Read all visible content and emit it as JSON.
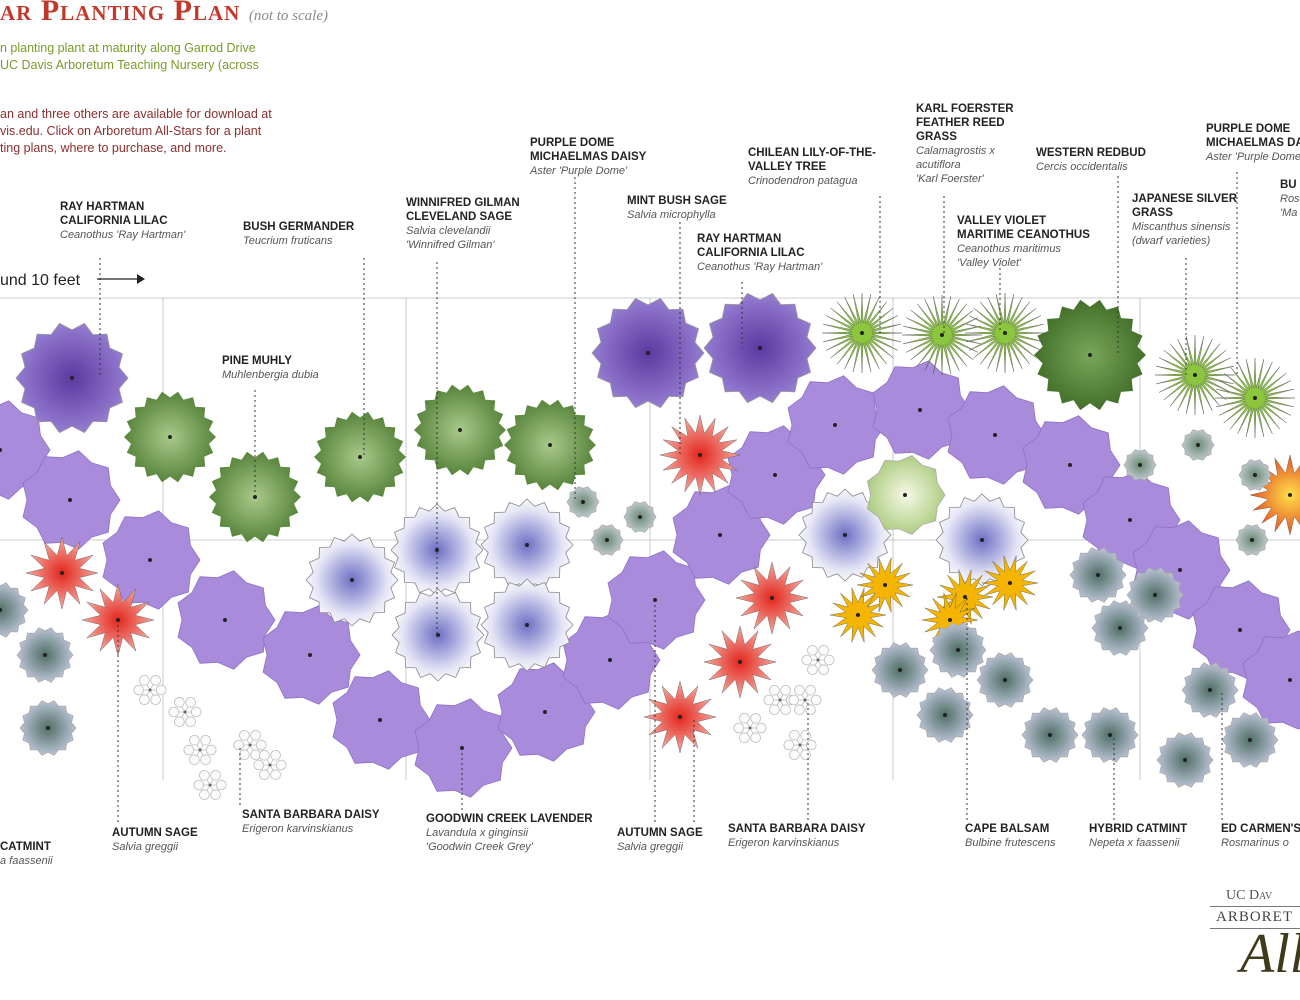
{
  "header": {
    "title": "ar Planting Plan",
    "note": "(not to scale)",
    "intro_1": "n planting plant at maturity along Garrod Drive\nUC Davis Arboretum Teaching Nursery (across",
    "intro_2": "an and three others are available for download at\nvis.edu. Click on Arboretum All-Stars for a plant\nting plans, where to purchase, and more."
  },
  "scale_label": "und 10 feet",
  "labels": [
    {
      "common": "RAY HARTMAN\nCALIFORNIA LILAC",
      "botanical": "Ceanothus 'Ray Hartman'"
    },
    {
      "common": "BUSH GERMANDER",
      "botanical": "Teucrium fruticans"
    },
    {
      "common": "WINNIFRED GILMAN\nCLEVELAND SAGE",
      "botanical": "Salvia clevelandii\n'Winnifred Gilman'"
    },
    {
      "common": "PURPLE DOME\nMICHAELMAS DAISY",
      "botanical": "Aster 'Purple Dome'"
    },
    {
      "common": "MINT BUSH SAGE",
      "botanical": "Salvia microphylla"
    },
    {
      "common": "RAY HARTMAN\nCALIFORNIA LILAC",
      "botanical": "Ceanothus 'Ray Hartman'"
    },
    {
      "common": "CHILEAN LILY-OF-THE-\nVALLEY TREE",
      "botanical": "Crinodendron patagua"
    },
    {
      "common": "KARL FOERSTER\nFEATHER REED\nGRASS",
      "botanical": "Calamagrostis x\nacutiflora\n'Karl Foerster'"
    },
    {
      "common": "WESTERN REDBUD",
      "botanical": "Cercis occidentalis"
    },
    {
      "common": "VALLEY VIOLET\nMARITIME CEANOTHUS",
      "botanical": "Ceanothus maritimus\n'Valley Violet'"
    },
    {
      "common": "PURPLE DOME\nMICHAELMAS DAISY",
      "botanical": "Aster 'Purple Dome'"
    },
    {
      "common": "JAPANESE SILVER\nGRASS",
      "botanical": "Miscanthus sinensis\n(dwarf varieties)"
    },
    {
      "common": "BU",
      "botanical": "Ros\n'Ma"
    },
    {
      "common": "PINE MUHLY",
      "botanical": "Muhlenbergia dubia"
    },
    {
      "common": "CATMINT",
      "botanical": "a faassenii"
    },
    {
      "common": "AUTUMN SAGE",
      "botanical": "Salvia greggii"
    },
    {
      "common": "SANTA BARBARA DAISY",
      "botanical": "Erigeron karvinskianus"
    },
    {
      "common": "GOODWIN CREEK LAVENDER",
      "botanical": "Lavandula x ginginsii\n'Goodwin Creek Grey'"
    },
    {
      "common": "AUTUMN SAGE",
      "botanical": "Salvia greggii"
    },
    {
      "common": "SANTA BARBARA DAISY",
      "botanical": "Erigeron karvinskianus"
    },
    {
      "common": "CAPE BALSAM",
      "botanical": "Bulbine frutescens"
    },
    {
      "common": "HYBRID CATMINT",
      "botanical": "Nepeta x faassenii"
    },
    {
      "common": "ED CARMEN'S",
      "botanical": "Rosmarinus o"
    }
  ],
  "logo": {
    "line1": "UC Dav",
    "line2": "ARBORET",
    "line3": "All"
  },
  "colors": {
    "title": "#c0392b",
    "lavender": "#a98bdc",
    "ceanothus": "#7a55b8",
    "green_shrub": "#5e8a3e",
    "grass": "#8cc63f",
    "sage_red": "#e8544a",
    "bulbine": "#f4b400",
    "catmint": "#9fa8c8"
  },
  "icons": {
    "scale_arrow": "right-arrow-icon",
    "logo": "arboretum-logo"
  }
}
